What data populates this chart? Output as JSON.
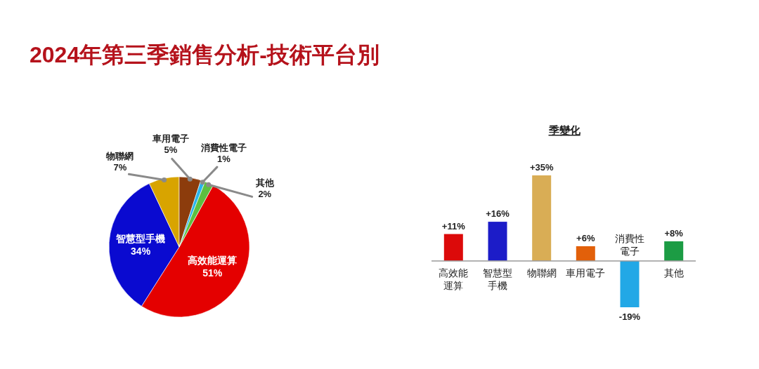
{
  "chart_data": [
    {
      "type": "pie",
      "title": "2024年第三季銷售分析-技術平台別",
      "categories": [
        "高效能運算",
        "智慧型手機",
        "物聯網",
        "車用電子",
        "消費性電子",
        "其他"
      ],
      "values": [
        51,
        34,
        7,
        5,
        1,
        2
      ],
      "value_labels": [
        "51%",
        "34%",
        "7%",
        "5%",
        "1%",
        "2%"
      ],
      "colors": [
        "#e40000",
        "#0a0ad0",
        "#d8a400",
        "#8c3c0c",
        "#28b4ec",
        "#5cc040"
      ]
    },
    {
      "type": "bar",
      "title": "季變化",
      "categories": [
        "高效能運算",
        "智慧型手機",
        "物聯網",
        "車用電子",
        "消費性電子",
        "其他"
      ],
      "values": [
        11,
        16,
        35,
        6,
        -19,
        8
      ],
      "value_labels": [
        "+11%",
        "+16%",
        "+35%",
        "+6%",
        "-19%",
        "+8%"
      ],
      "colors": [
        "#dc0a0a",
        "#1c1cc8",
        "#d9ad55",
        "#e2600a",
        "#22a8e6",
        "#1c9c44"
      ]
    }
  ]
}
